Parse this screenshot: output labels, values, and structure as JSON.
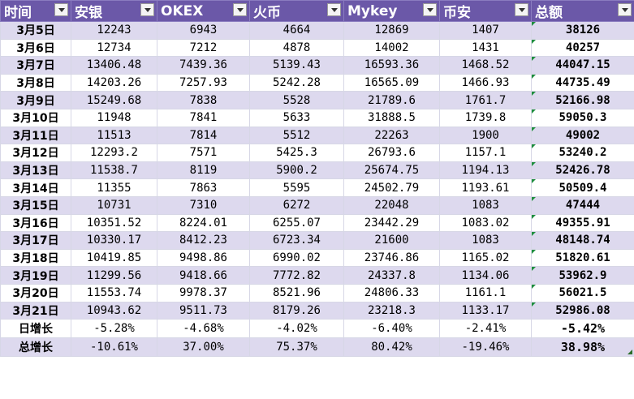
{
  "headers": [
    "时间",
    "安银",
    "OKEX",
    "火币",
    "Mykey",
    "币安",
    "总额"
  ],
  "rows": [
    {
      "date": "3月5日",
      "values": [
        "12243",
        "6943",
        "4664",
        "12869",
        "1407"
      ],
      "total": "38126"
    },
    {
      "date": "3月6日",
      "values": [
        "12734",
        "7212",
        "4878",
        "14002",
        "1431"
      ],
      "total": "40257"
    },
    {
      "date": "3月7日",
      "values": [
        "13406.48",
        "7439.36",
        "5139.43",
        "16593.36",
        "1468.52"
      ],
      "total": "44047.15"
    },
    {
      "date": "3月8日",
      "values": [
        "14203.26",
        "7257.93",
        "5242.28",
        "16565.09",
        "1466.93"
      ],
      "total": "44735.49"
    },
    {
      "date": "3月9日",
      "values": [
        "15249.68",
        "7838",
        "5528",
        "21789.6",
        "1761.7"
      ],
      "total": "52166.98"
    },
    {
      "date": "3月10日",
      "values": [
        "11948",
        "7841",
        "5633",
        "31888.5",
        "1739.8"
      ],
      "total": "59050.3"
    },
    {
      "date": "3月11日",
      "values": [
        "11513",
        "7814",
        "5512",
        "22263",
        "1900"
      ],
      "total": "49002"
    },
    {
      "date": "3月12日",
      "values": [
        "12293.2",
        "7571",
        "5425.3",
        "26793.6",
        "1157.1"
      ],
      "total": "53240.2"
    },
    {
      "date": "3月13日",
      "values": [
        "11538.7",
        "8119",
        "5900.2",
        "25674.75",
        "1194.13"
      ],
      "total": "52426.78"
    },
    {
      "date": "3月14日",
      "values": [
        "11355",
        "7863",
        "5595",
        "24502.79",
        "1193.61"
      ],
      "total": "50509.4"
    },
    {
      "date": "3月15日",
      "values": [
        "10731",
        "7310",
        "6272",
        "22048",
        "1083"
      ],
      "total": "47444"
    },
    {
      "date": "3月16日",
      "values": [
        "10351.52",
        "8224.01",
        "6255.07",
        "23442.29",
        "1083.02"
      ],
      "total": "49355.91"
    },
    {
      "date": "3月17日",
      "values": [
        "10330.17",
        "8412.23",
        "6723.34",
        "21600",
        "1083"
      ],
      "total": "48148.74"
    },
    {
      "date": "3月18日",
      "values": [
        "10419.85",
        "9498.86",
        "6990.02",
        "23746.86",
        "1165.02"
      ],
      "total": "51820.61"
    },
    {
      "date": "3月19日",
      "values": [
        "11299.56",
        "9418.66",
        "7772.82",
        "24337.8",
        "1134.06"
      ],
      "total": "53962.9"
    },
    {
      "date": "3月20日",
      "values": [
        "11553.74",
        "9978.37",
        "8521.96",
        "24806.33",
        "1161.1"
      ],
      "total": "56021.5"
    },
    {
      "date": "3月21日",
      "values": [
        "10943.62",
        "9511.73",
        "8179.26",
        "23218.3",
        "1133.17"
      ],
      "total": "52986.08"
    }
  ],
  "summary": [
    {
      "label": "日增长",
      "values": [
        "-5.28%",
        "-4.68%",
        "-4.02%",
        "-6.40%",
        "-2.41%"
      ],
      "total": "-5.42%"
    },
    {
      "label": "总增长",
      "values": [
        "-10.61%",
        "37.00%",
        "75.37%",
        "80.42%",
        "-19.46%"
      ],
      "total": "38.98%"
    }
  ],
  "colors": {
    "header_bg": "#6b58a8",
    "band_bg": "#ddd9ee",
    "error_marker": "#1e8e3e"
  }
}
